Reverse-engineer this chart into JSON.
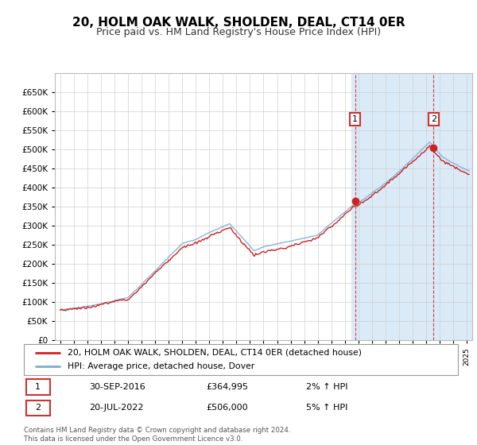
{
  "title": "20, HOLM OAK WALK, SHOLDEN, DEAL, CT14 0ER",
  "subtitle": "Price paid vs. HM Land Registry's House Price Index (HPI)",
  "legend_line1": "20, HOLM OAK WALK, SHOLDEN, DEAL, CT14 0ER (detached house)",
  "legend_line2": "HPI: Average price, detached house, Dover",
  "annotation1_date": "30-SEP-2016",
  "annotation1_price": "£364,995",
  "annotation1_hpi": "2% ↑ HPI",
  "annotation1_year": 2016.75,
  "annotation1_value": 364995,
  "annotation2_date": "20-JUL-2022",
  "annotation2_price": "£506,000",
  "annotation2_hpi": "5% ↑ HPI",
  "annotation2_year": 2022.55,
  "annotation2_value": 506000,
  "footer": "Contains HM Land Registry data © Crown copyright and database right 2024.\nThis data is licensed under the Open Government Licence v3.0.",
  "ylim": [
    0,
    700000
  ],
  "yticks": [
    0,
    50000,
    100000,
    150000,
    200000,
    250000,
    300000,
    350000,
    400000,
    450000,
    500000,
    550000,
    600000,
    650000
  ],
  "hpi_color": "#7aaed6",
  "price_color": "#cc2222",
  "dashed_color": "#cc3333",
  "bg_highlight_color": "#daeaf7",
  "grid_color": "#d0d0d0",
  "title_fontsize": 11,
  "subtitle_fontsize": 9,
  "highlight_start": 2016.5,
  "xmin": 1994.6,
  "xmax": 2025.4
}
